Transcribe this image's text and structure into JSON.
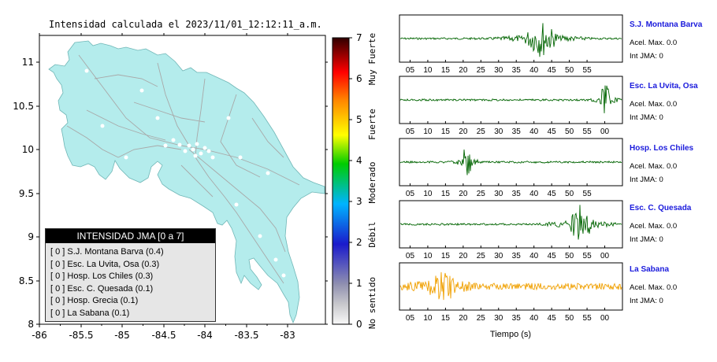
{
  "map": {
    "title": "Intensidad calculada el 2023/11/01_12:12:11_a.m.",
    "x_ticks": [
      "-86",
      "-85.5",
      "-85",
      "-84.5",
      "-84",
      "-83.5",
      "-83"
    ],
    "y_ticks": [
      "11",
      "10.5",
      "10",
      "9.5",
      "9",
      "8.5",
      "8"
    ],
    "colors": {
      "land": "#b4ecec",
      "sea": "#ffffff",
      "roads": "#9a9a9a",
      "stations": "#ffffff"
    }
  },
  "colorbar": {
    "ticks": [
      "0",
      "1",
      "2",
      "3",
      "4",
      "5",
      "6",
      "7"
    ],
    "labels": [
      "No sentido",
      "Débil",
      "Moderado",
      "Fuerte",
      "Muy Fuerte"
    ],
    "colors": [
      "#f8f8f8",
      "#9090b0",
      "#1a1acc",
      "#00b4ff",
      "#00cc00",
      "#ffff00",
      "#ff8800",
      "#ff0000",
      "#300000"
    ]
  },
  "legend": {
    "title": "INTENSIDAD JMA [0 a 7]",
    "items": [
      "[ 0 ]  S.J. Montana Barva (0.4)",
      "[ 0 ]  Esc. La Uvita, Osa (0.3)",
      "[ 0 ]  Hosp. Los Chiles (0.3)",
      "[ 0 ]  Esc. C. Quesada (0.1)",
      "[ 0 ]  Hosp. Grecia (0.1)",
      "[ 0 ]  La Sabana (0.1)"
    ]
  },
  "waveforms": {
    "x_label": "Tiempo (s)",
    "panels": [
      {
        "station": "S.J. Montana Barva",
        "acel": "Acel. Max. 0.0",
        "int": "Int JMA: 0",
        "ticks": [
          "05",
          "10",
          "15",
          "20",
          "25",
          "30",
          "35",
          "40",
          "45",
          "50",
          "55"
        ],
        "color": "#006400"
      },
      {
        "station": "Esc. La Uvita, Osa",
        "acel": "Acel. Max. 0.0",
        "int": "Int JMA: 0",
        "ticks": [
          "05",
          "10",
          "15",
          "20",
          "25",
          "30",
          "35",
          "40",
          "45",
          "50",
          "55",
          "00"
        ],
        "color": "#006400"
      },
      {
        "station": "Hosp. Los Chiles",
        "acel": "Acel. Max. 0.0",
        "int": "Int JMA: 0",
        "ticks": [
          "05",
          "10",
          "15",
          "20",
          "25",
          "30",
          "35",
          "40",
          "45",
          "50",
          "55"
        ],
        "color": "#006400"
      },
      {
        "station": "Esc. C. Quesada",
        "acel": "Acel. Max. 0.0",
        "int": "Int JMA: 0",
        "ticks": [
          "05",
          "10",
          "15",
          "20",
          "25",
          "30",
          "35",
          "40",
          "45",
          "50",
          "55",
          "00"
        ],
        "color": "#006400"
      },
      {
        "station": "La Sabana",
        "acel": "Acel. Max. 0.0",
        "int": "Int JMA: 0",
        "ticks": [
          "05",
          "10",
          "15",
          "20",
          "25",
          "30",
          "35",
          "40",
          "45",
          "50",
          "55",
          "00"
        ],
        "color": "#f0a000"
      }
    ]
  },
  "chart_data": [
    {
      "type": "map",
      "title": "Intensidad calculada el 2023/11/01_12:12:11_a.m.",
      "xlim": [
        -86,
        -82.6
      ],
      "ylim": [
        8,
        11.3
      ],
      "legend_title": "INTENSIDAD JMA [0 a 7]",
      "stations": [
        {
          "name": "S.J. Montana Barva",
          "jma": 0,
          "value": 0.4
        },
        {
          "name": "Esc. La Uvita, Osa",
          "jma": 0,
          "value": 0.3
        },
        {
          "name": "Hosp. Los Chiles",
          "jma": 0,
          "value": 0.3
        },
        {
          "name": "Esc. C. Quesada",
          "jma": 0,
          "value": 0.1
        },
        {
          "name": "Hosp. Grecia",
          "jma": 0,
          "value": 0.1
        },
        {
          "name": "La Sabana",
          "jma": 0,
          "value": 0.1
        }
      ],
      "colorbar_range": [
        0,
        7
      ]
    },
    {
      "type": "line",
      "xlabel": "Tiempo (s)",
      "series": [
        {
          "name": "S.J. Montana Barva",
          "burst_center_s": 42,
          "burst_halfwidth_s": 6
        },
        {
          "name": "Esc. La Uvita, Osa",
          "burst_center_s": 60,
          "burst_halfwidth_s": 2
        },
        {
          "name": "Hosp. Los Chiles",
          "burst_center_s": 21,
          "burst_halfwidth_s": 2
        },
        {
          "name": "Esc. C. Quesada",
          "burst_center_s": 53,
          "burst_halfwidth_s": 5
        },
        {
          "name": "La Sabana",
          "burst_center_s": 14,
          "burst_halfwidth_s": 5
        }
      ]
    }
  ]
}
